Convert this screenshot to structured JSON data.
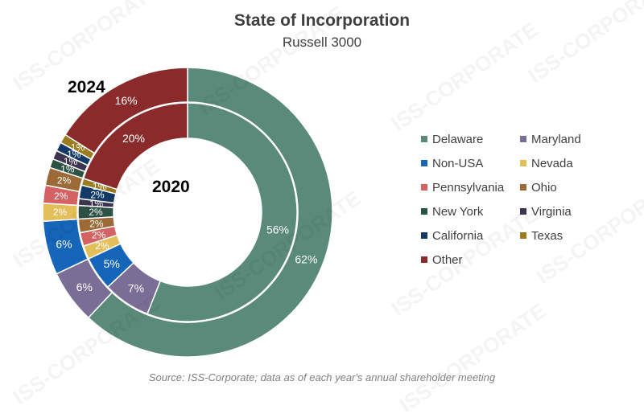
{
  "chart_data": {
    "type": "donut",
    "title": "State of Incorporation",
    "subtitle": "Russell 3000",
    "source": "Source: ISS-Corporate; data as of each year's annual shareholder meeting",
    "watermark": "ISS-CORPORATE",
    "categories": [
      "Delaware",
      "Maryland",
      "Non-USA",
      "Nevada",
      "Pennsylvania",
      "Ohio",
      "New York",
      "Virginia",
      "California",
      "Texas",
      "Other"
    ],
    "colors": [
      "#5a8a7a",
      "#7a6e96",
      "#1565b8",
      "#e3bf5a",
      "#d46262",
      "#9c6a36",
      "#2c5244",
      "#3d3450",
      "#133a66",
      "#9c7c20",
      "#8b2a2a"
    ],
    "series": [
      {
        "name": "2024",
        "values": [
          62,
          6,
          6,
          2,
          2,
          2,
          1,
          1,
          1,
          1,
          16
        ],
        "labels": [
          "62%",
          "6%",
          "6%",
          "2%",
          "2%",
          "2%",
          "1%",
          "1%",
          "1%",
          "1%",
          "16%"
        ]
      },
      {
        "name": "2020",
        "values": [
          56,
          7,
          5,
          2,
          2,
          2,
          2,
          1,
          2,
          1,
          20
        ],
        "labels": [
          "56%",
          "7%",
          "5%",
          "2%",
          "2%",
          "2%",
          "2%",
          "1%",
          "2%",
          "1%",
          "20%"
        ]
      }
    ]
  }
}
